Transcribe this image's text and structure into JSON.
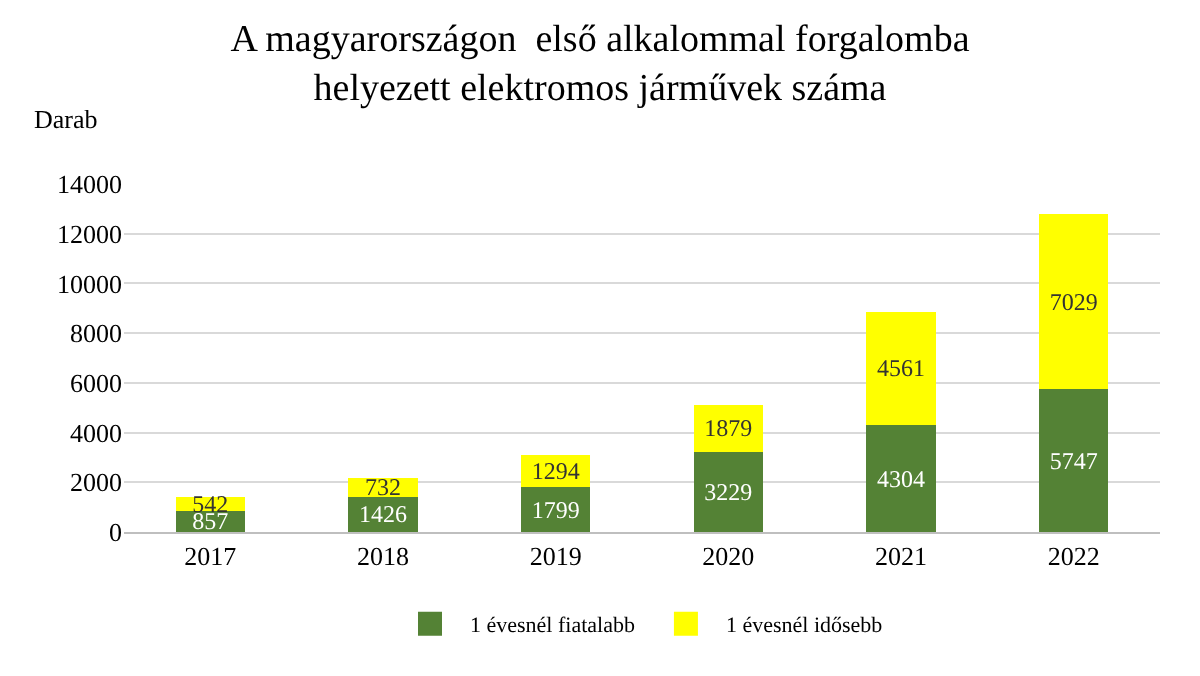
{
  "chart_data": {
    "type": "bar",
    "title": "A magyarországon  első alkalommal forgalomba\nhelyezett elektromos járművek száma",
    "ylabel": "Darab",
    "categories": [
      "2017",
      "2018",
      "2019",
      "2020",
      "2021",
      "2022"
    ],
    "series": [
      {
        "name": "1 évesnél fiatalabb",
        "color": "#548235",
        "values": [
          857,
          1426,
          1799,
          3229,
          4304,
          5747
        ]
      },
      {
        "name": "1 évesnél idősebb",
        "color": "#ffff00",
        "values": [
          542,
          732,
          1294,
          1879,
          4561,
          7029
        ]
      }
    ],
    "stacked": true,
    "data_labels": true,
    "ylim": [
      0,
      14000
    ],
    "yticks": [
      0,
      2000,
      4000,
      6000,
      8000,
      10000,
      12000,
      14000
    ],
    "grid": "y",
    "legend": "bottom"
  }
}
